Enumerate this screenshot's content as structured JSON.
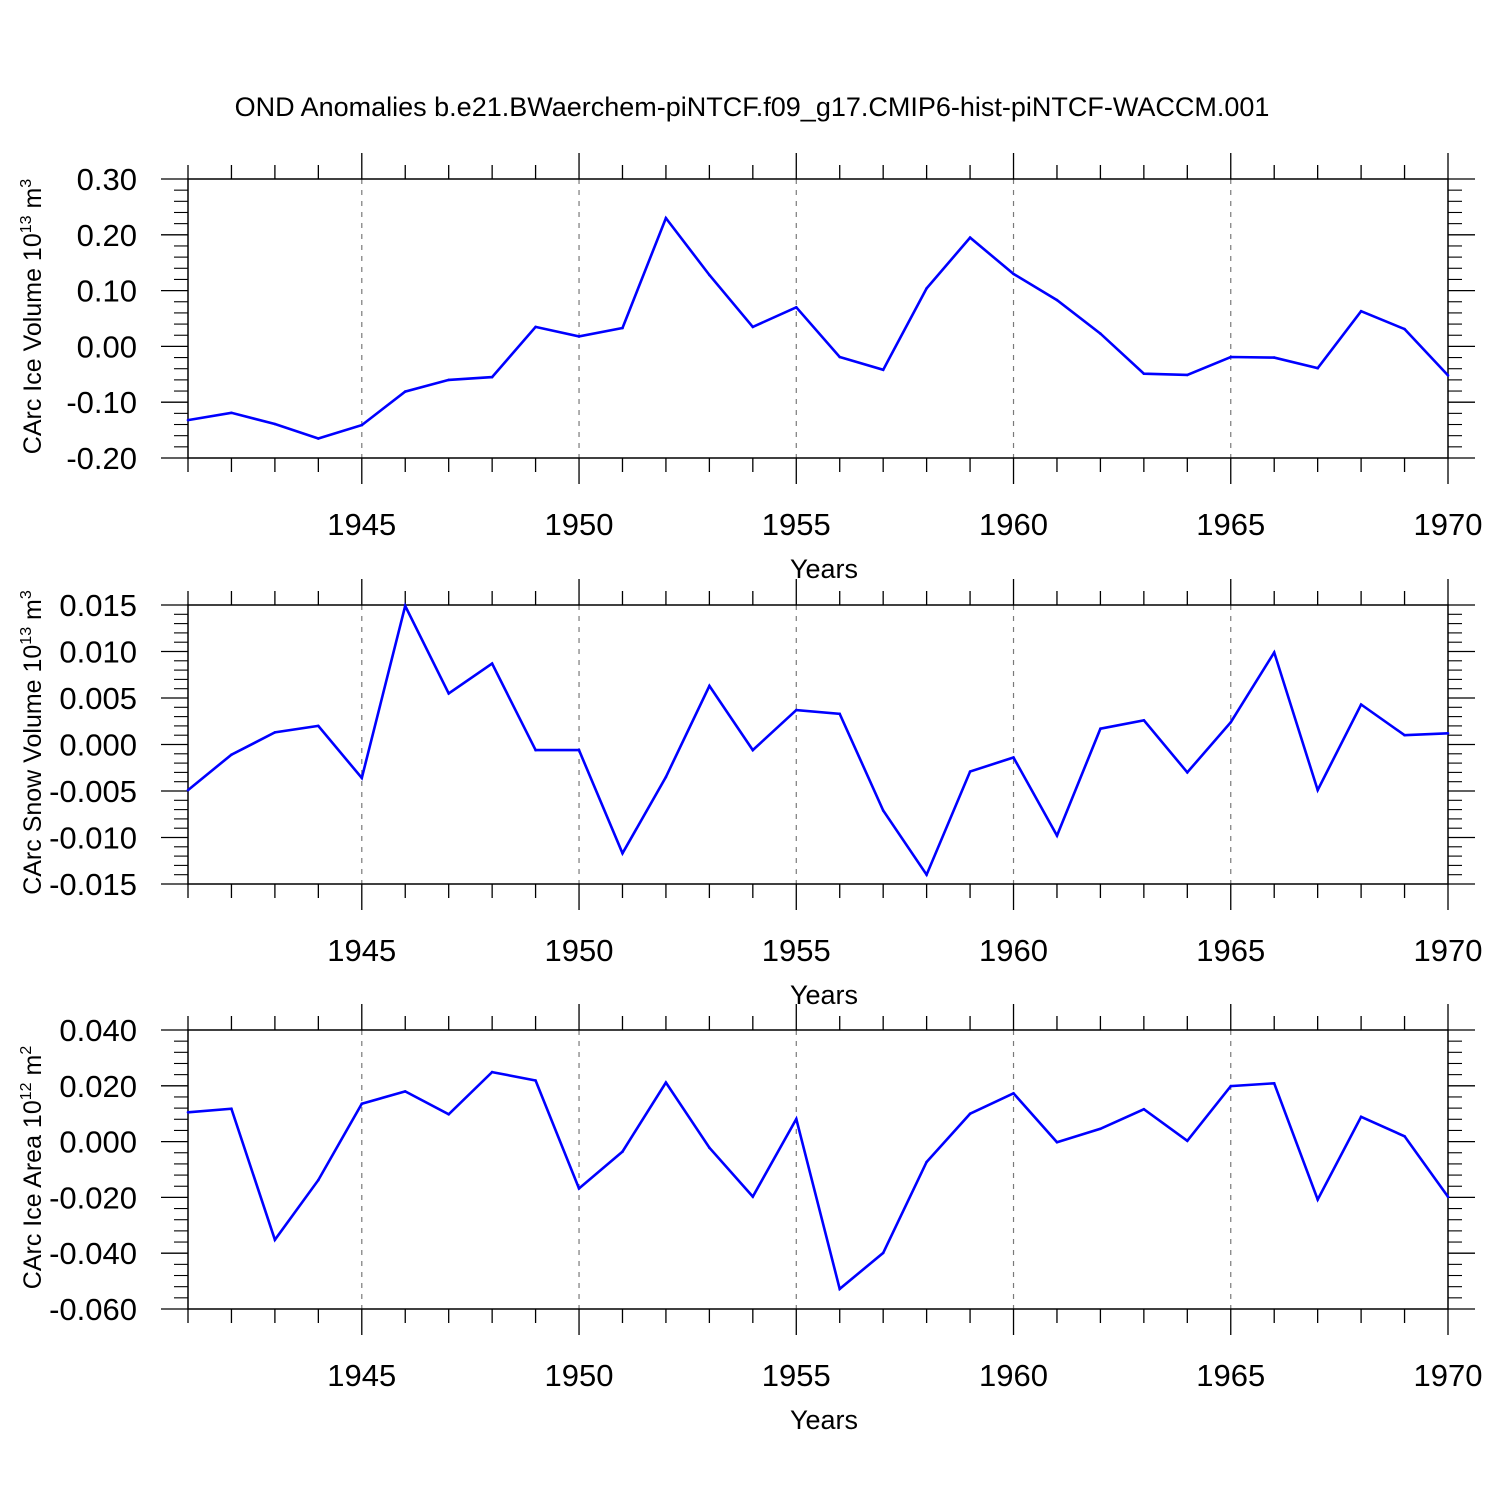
{
  "chart_data": {
    "title": "OND Anomalies b.e21.BWaerchem-piNTCF.f09_g17.CMIP6-hist-piNTCF-WACCM.001",
    "panels": [
      {
        "type": "line",
        "name": "ice-volume",
        "ylabel": {
          "prefix": "CArc Ice Volume 10",
          "exp1": "13",
          "mid": " m",
          "exp2": "3"
        },
        "xlabel": "Years",
        "xlim": [
          1941,
          1970
        ],
        "ylim": [
          -0.2,
          0.3
        ],
        "xticks": [
          1945,
          1950,
          1955,
          1960,
          1965,
          1970
        ],
        "xtick_labels": [
          "1945",
          "1950",
          "1955",
          "1960",
          "1965",
          "1970"
        ],
        "yticks": [
          -0.2,
          -0.1,
          0.0,
          0.1,
          0.2,
          0.3
        ],
        "ytick_labels": [
          "-0.20",
          "-0.10",
          "0.00",
          "0.10",
          "0.20",
          "0.30"
        ],
        "x": [
          1941,
          1942,
          1943,
          1944,
          1945,
          1946,
          1947,
          1948,
          1949,
          1950,
          1951,
          1952,
          1953,
          1954,
          1955,
          1956,
          1957,
          1958,
          1959,
          1960,
          1961,
          1962,
          1963,
          1964,
          1965,
          1966,
          1967,
          1968,
          1969,
          1970
        ],
        "values": [
          -0.132,
          -0.119,
          -0.139,
          -0.165,
          -0.141,
          -0.081,
          -0.06,
          -0.055,
          0.035,
          0.018,
          0.033,
          0.23,
          0.128,
          0.035,
          0.07,
          -0.019,
          -0.042,
          0.104,
          0.195,
          0.13,
          0.083,
          0.023,
          -0.049,
          -0.051,
          -0.019,
          -0.02,
          -0.039,
          0.063,
          0.031,
          -0.052
        ],
        "grid": "dashed vertical at major x ticks",
        "color": "#0000ff"
      },
      {
        "type": "line",
        "name": "snow-volume",
        "ylabel": {
          "prefix": "CArc Snow Volume 10",
          "exp1": "13",
          "mid": " m",
          "exp2": "3"
        },
        "xlabel": "Years",
        "xlim": [
          1941,
          1970
        ],
        "ylim": [
          -0.015,
          0.015
        ],
        "xticks": [
          1945,
          1950,
          1955,
          1960,
          1965,
          1970
        ],
        "xtick_labels": [
          "1945",
          "1950",
          "1955",
          "1960",
          "1965",
          "1970"
        ],
        "yticks": [
          -0.015,
          -0.01,
          -0.005,
          0.0,
          0.005,
          0.01,
          0.015
        ],
        "ytick_labels": [
          "-0.015",
          "-0.010",
          "-0.005",
          "0.000",
          "0.005",
          "0.010",
          "0.015"
        ],
        "x": [
          1941,
          1942,
          1943,
          1944,
          1945,
          1946,
          1947,
          1948,
          1949,
          1950,
          1951,
          1952,
          1953,
          1954,
          1955,
          1956,
          1957,
          1958,
          1959,
          1960,
          1961,
          1962,
          1963,
          1964,
          1965,
          1966,
          1967,
          1968,
          1969,
          1970
        ],
        "values": [
          -0.0049,
          -0.0011,
          0.0013,
          0.002,
          -0.0036,
          0.0149,
          0.0055,
          0.0087,
          -0.0006,
          -0.0006,
          -0.0117,
          -0.0035,
          0.0063,
          -0.0006,
          0.0037,
          0.0033,
          -0.0071,
          -0.014,
          -0.0029,
          -0.0014,
          -0.0098,
          0.0017,
          0.0026,
          -0.003,
          0.0024,
          0.0099,
          -0.0049,
          0.0043,
          0.001,
          0.0012
        ],
        "grid": "dashed vertical at major x ticks",
        "color": "#0000ff"
      },
      {
        "type": "line",
        "name": "ice-area",
        "ylabel": {
          "prefix": "CArc Ice Area 10",
          "exp1": "12",
          "mid": " m",
          "exp2": "2"
        },
        "xlabel": "Years",
        "xlim": [
          1941,
          1970
        ],
        "ylim": [
          -0.06,
          0.04
        ],
        "xticks": [
          1945,
          1950,
          1955,
          1960,
          1965,
          1970
        ],
        "xtick_labels": [
          "1945",
          "1950",
          "1955",
          "1960",
          "1965",
          "1970"
        ],
        "yticks": [
          -0.06,
          -0.04,
          -0.02,
          0.0,
          0.02,
          0.04
        ],
        "ytick_labels": [
          "-0.060",
          "-0.040",
          "-0.020",
          "0.000",
          "0.020",
          "0.040"
        ],
        "x": [
          1941,
          1942,
          1943,
          1944,
          1945,
          1946,
          1947,
          1948,
          1949,
          1950,
          1951,
          1952,
          1953,
          1954,
          1955,
          1956,
          1957,
          1958,
          1959,
          1960,
          1961,
          1962,
          1963,
          1964,
          1965,
          1966,
          1967,
          1968,
          1969,
          1970
        ],
        "values": [
          0.0105,
          0.0118,
          -0.0352,
          -0.0138,
          0.0136,
          0.018,
          0.0098,
          0.0249,
          0.0219,
          -0.0168,
          -0.0036,
          0.0212,
          -0.0022,
          -0.0197,
          0.0081,
          -0.0528,
          -0.0399,
          -0.0073,
          0.01,
          0.0173,
          -0.0002,
          0.0046,
          0.0116,
          0.0003,
          0.0199,
          0.0209,
          -0.0208,
          0.0089,
          0.0019,
          -0.0198
        ],
        "grid": "dashed vertical at major x ticks",
        "color": "#0000ff"
      }
    ]
  }
}
